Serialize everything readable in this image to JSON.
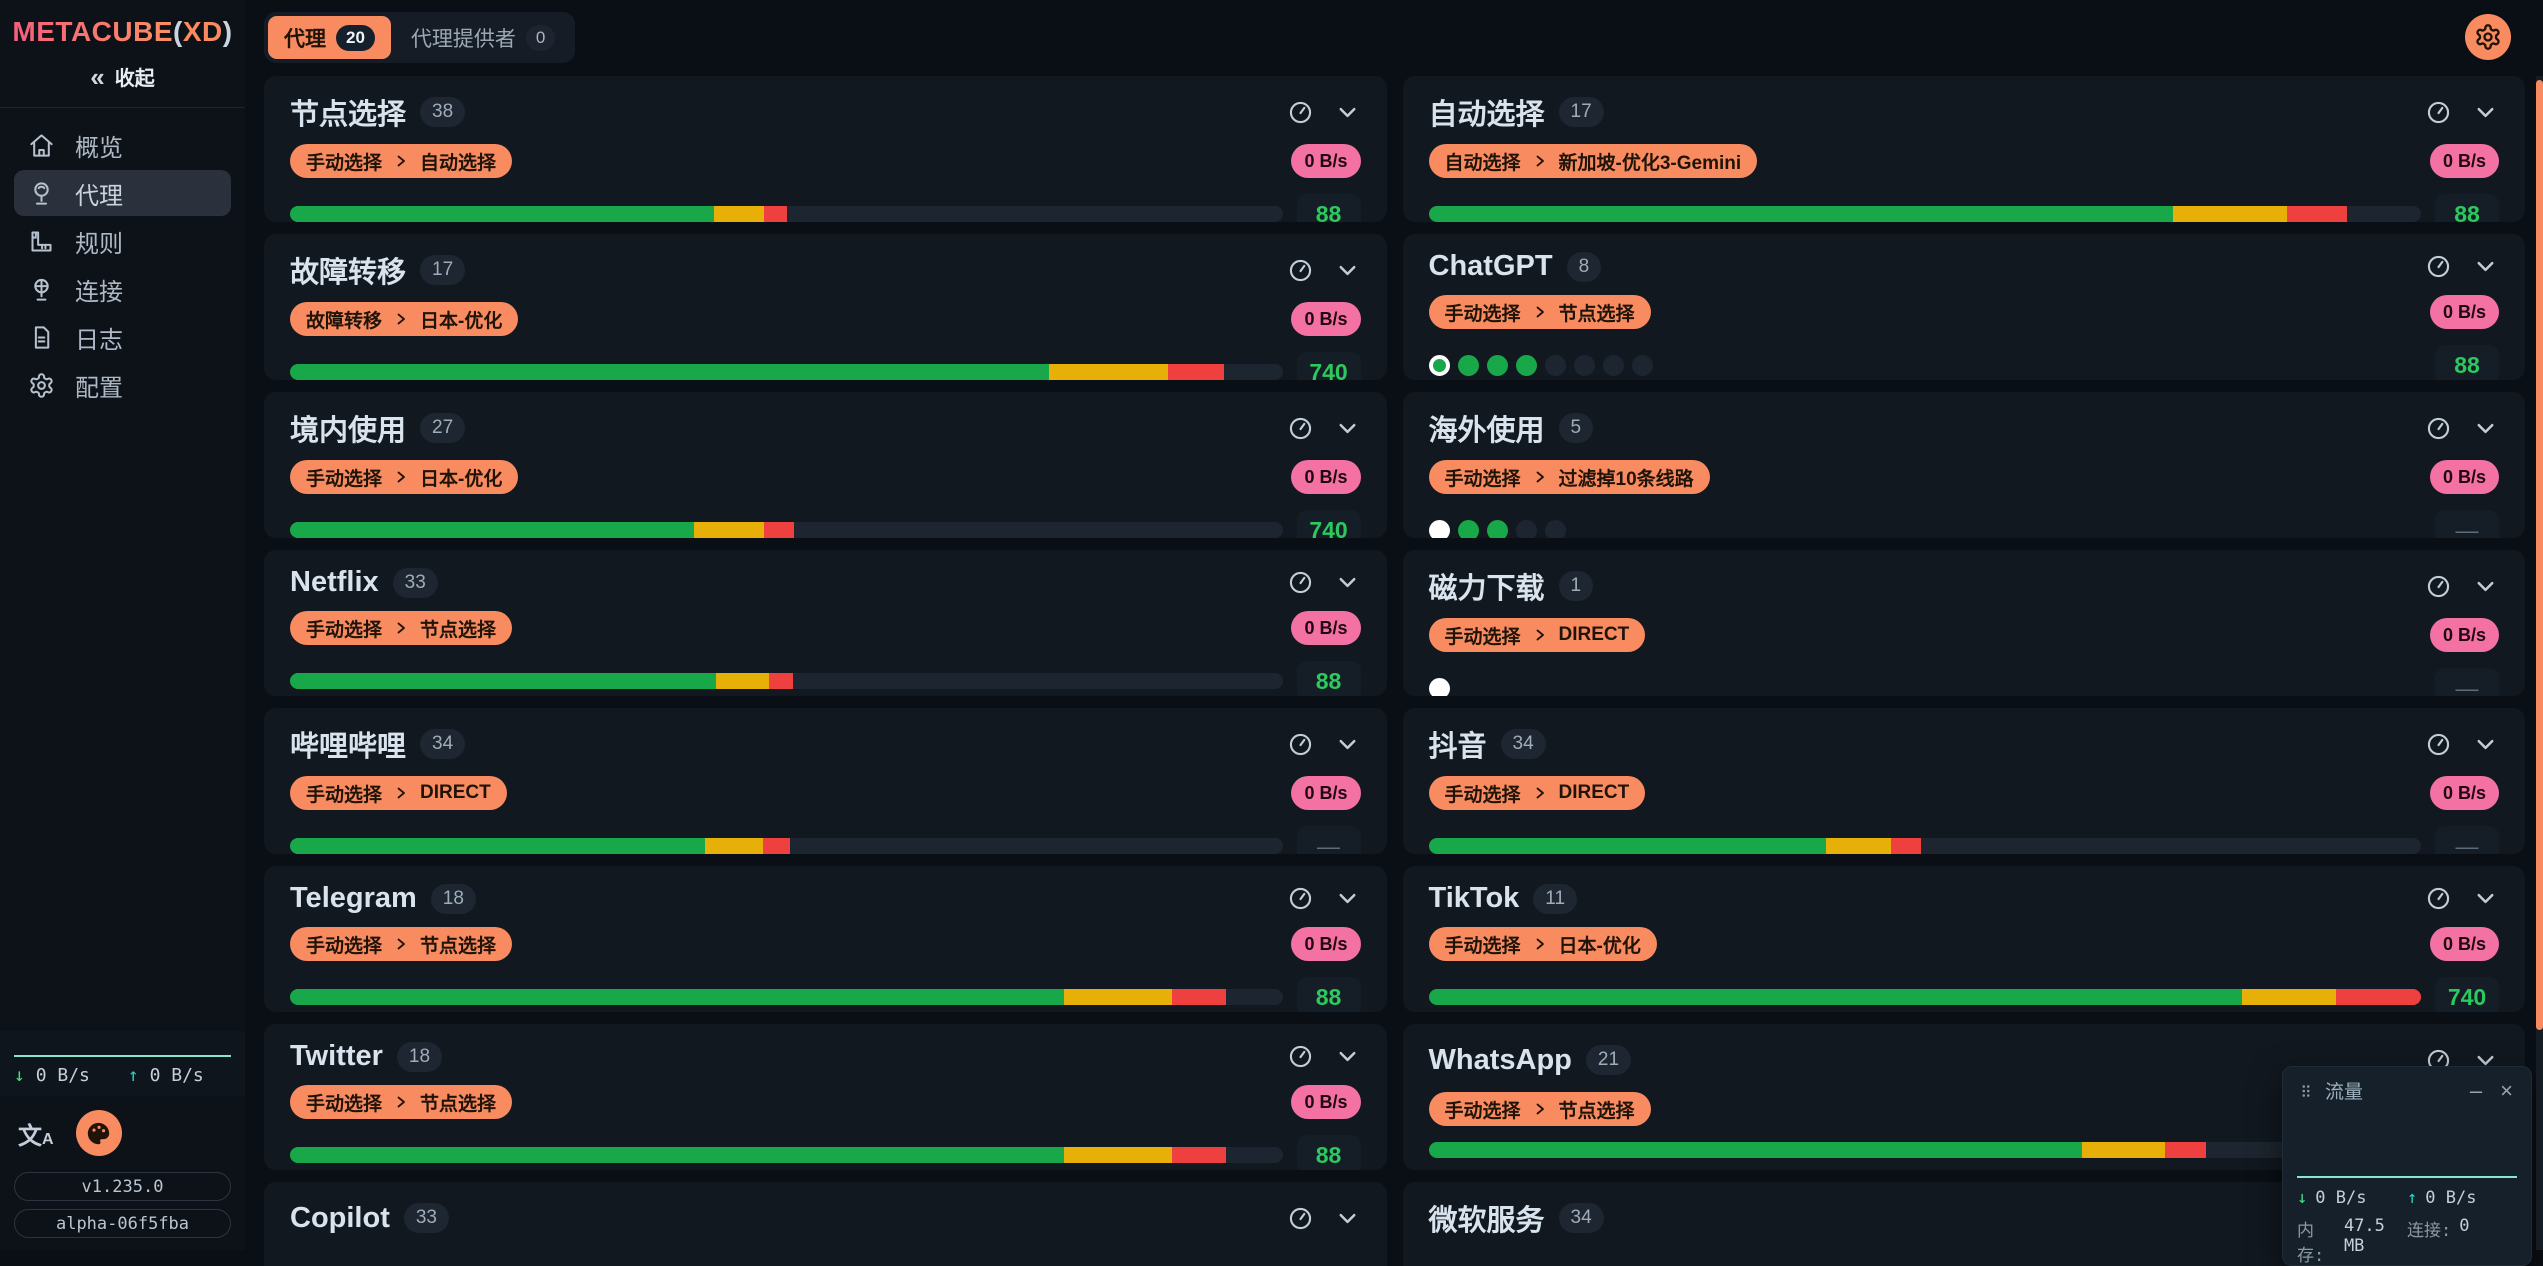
{
  "colors": {
    "accent_orange": "#f98b60",
    "badge_pink": "#f471a4",
    "bar_green": "#18a84a",
    "bar_yellow": "#e6b009",
    "bar_red": "#ef4040",
    "latency_green": "#2bc95e",
    "chart_teal": "#8ae5cd"
  },
  "sidebar": {
    "logo": {
      "brand": "METACUBE",
      "paren_open": "(",
      "xd": "XD",
      "paren_close": ")"
    },
    "collapse_label": "收起",
    "menu": [
      {
        "label": "概览",
        "icon": "home-icon",
        "active": false
      },
      {
        "label": "代理",
        "icon": "proxy-icon",
        "active": true
      },
      {
        "label": "规则",
        "icon": "rules-icon",
        "active": false
      },
      {
        "label": "连接",
        "icon": "connections-icon",
        "active": false
      },
      {
        "label": "日志",
        "icon": "logs-icon",
        "active": false
      },
      {
        "label": "配置",
        "icon": "config-icon",
        "active": false
      }
    ],
    "traffic": {
      "down": "0 B/s",
      "up": "0 B/s"
    },
    "version": "v1.235.0",
    "build": "alpha-06f5fba"
  },
  "topbar": {
    "tabs": [
      {
        "label": "代理",
        "count": "20",
        "active": true
      },
      {
        "label": "代理提供者",
        "count": "0",
        "active": false
      }
    ]
  },
  "cards": [
    {
      "title": "节点选择",
      "count": "38",
      "badge": {
        "type": "手动选择",
        "node": "自动选择"
      },
      "speed": "0 B/s",
      "indicator": {
        "kind": "bar",
        "green": 42.7,
        "yellow": 5.1,
        "red": 2.3
      },
      "latency": "88"
    },
    {
      "title": "自动选择",
      "count": "17",
      "badge": {
        "type": "自动选择",
        "node": "新加坡-优化3-Gemini"
      },
      "speed": "0 B/s",
      "indicator": {
        "kind": "bar",
        "green": 75,
        "yellow": 11.5,
        "red": 6
      },
      "latency": "88"
    },
    {
      "title": "故障转移",
      "count": "17",
      "badge": {
        "type": "故障转移",
        "node": "日本-优化"
      },
      "speed": "0 B/s",
      "indicator": {
        "kind": "bar",
        "green": 76.5,
        "yellow": 12,
        "red": 5.6
      },
      "latency": "740"
    },
    {
      "title": "ChatGPT",
      "count": "8",
      "badge": {
        "type": "手动选择",
        "node": "节点选择"
      },
      "speed": "0 B/s",
      "indicator": {
        "kind": "dots",
        "dots": [
          "selected-green",
          "green",
          "green",
          "green",
          "gray",
          "gray",
          "gray",
          "gray"
        ]
      },
      "latency": "88"
    },
    {
      "title": "境内使用",
      "count": "27",
      "badge": {
        "type": "手动选择",
        "node": "日本-优化"
      },
      "speed": "0 B/s",
      "indicator": {
        "kind": "bar",
        "green": 40.7,
        "yellow": 7.1,
        "red": 3
      },
      "latency": "740"
    },
    {
      "title": "海外使用",
      "count": "5",
      "badge": {
        "type": "手动选择",
        "node": "过滤掉10条线路"
      },
      "speed": "0 B/s",
      "indicator": {
        "kind": "dots",
        "dots": [
          "selected-white",
          "green",
          "green",
          "gray",
          "gray"
        ]
      },
      "latency": "—"
    },
    {
      "title": "Netflix",
      "count": "33",
      "badge": {
        "type": "手动选择",
        "node": "节点选择"
      },
      "speed": "0 B/s",
      "indicator": {
        "kind": "bar",
        "green": 42.9,
        "yellow": 5.4,
        "red": 2.4
      },
      "latency": "88"
    },
    {
      "title": "磁力下载",
      "count": "1",
      "badge": {
        "type": "手动选择",
        "node": "DIRECT"
      },
      "speed": "0 B/s",
      "indicator": {
        "kind": "dots",
        "dots": [
          "selected-white"
        ]
      },
      "latency": "—"
    },
    {
      "title": "哔哩哔哩",
      "count": "34",
      "badge": {
        "type": "手动选择",
        "node": "DIRECT"
      },
      "speed": "0 B/s",
      "indicator": {
        "kind": "bar",
        "green": 41.8,
        "yellow": 5.9,
        "red": 2.7
      },
      "latency": "—"
    },
    {
      "title": "抖音",
      "count": "34",
      "badge": {
        "type": "手动选择",
        "node": "DIRECT"
      },
      "speed": "0 B/s",
      "indicator": {
        "kind": "bar",
        "green": 40,
        "yellow": 6.6,
        "red": 3
      },
      "latency": "—"
    },
    {
      "title": "Telegram",
      "count": "18",
      "badge": {
        "type": "手动选择",
        "node": "节点选择"
      },
      "speed": "0 B/s",
      "indicator": {
        "kind": "bar",
        "green": 78,
        "yellow": 10.9,
        "red": 5.4
      },
      "latency": "88"
    },
    {
      "title": "TikTok",
      "count": "11",
      "badge": {
        "type": "手动选择",
        "node": "日本-优化"
      },
      "speed": "0 B/s",
      "indicator": {
        "kind": "bar",
        "green": 82,
        "yellow": 9.4,
        "red": 8.6
      },
      "latency": "740"
    },
    {
      "title": "Twitter",
      "count": "18",
      "badge": {
        "type": "手动选择",
        "node": "节点选择"
      },
      "speed": "0 B/s",
      "indicator": {
        "kind": "bar",
        "green": 78,
        "yellow": 10.9,
        "red": 5.4
      },
      "latency": "88"
    },
    {
      "title": "WhatsApp",
      "count": "21",
      "badge": {
        "type": "手动选择",
        "node": "节点选择"
      },
      "speed": null,
      "indicator": {
        "kind": "bar",
        "green": 61,
        "yellow": 7.8,
        "red": 3.8
      },
      "latency": null
    },
    {
      "title": "Copilot",
      "count": "33",
      "badge": null,
      "speed": null,
      "indicator": null,
      "latency": null
    },
    {
      "title": "微软服务",
      "count": "34",
      "badge": null,
      "speed": null,
      "indicator": null,
      "latency": null
    }
  ],
  "panel": {
    "title": "流量",
    "down": "0 B/s",
    "up": "0 B/s",
    "memory_label": "内存:",
    "memory_value": "47.5 MB",
    "connections_label": "连接:",
    "connections_value": "0"
  }
}
